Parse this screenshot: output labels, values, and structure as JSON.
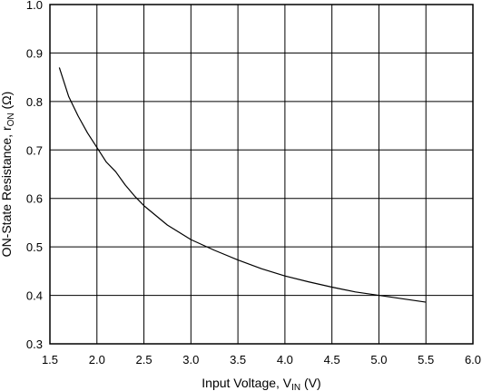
{
  "chart_data": {
    "type": "line",
    "xlabel": {
      "prefix": "Input Voltage, V",
      "sub": "IN",
      "suffix": " (V)"
    },
    "ylabel": {
      "prefix": "ON-State Resistance, r",
      "sub": "ON",
      "suffix": " (Ω)"
    },
    "xlim": [
      1.5,
      6.0
    ],
    "ylim": [
      0.3,
      1.0
    ],
    "x_ticks": [
      "1.5",
      "2.0",
      "2.5",
      "3.0",
      "3.5",
      "4.0",
      "4.5",
      "5.0",
      "5.5",
      "6.0"
    ],
    "y_ticks": [
      "0.3",
      "0.4",
      "0.5",
      "0.6",
      "0.7",
      "0.8",
      "0.9",
      "1.0"
    ],
    "grid": true,
    "series": [
      {
        "x": [
          1.6,
          1.7,
          1.8,
          1.9,
          2.0,
          2.1,
          2.2,
          2.3,
          2.4,
          2.5,
          2.75,
          3.0,
          3.25,
          3.5,
          3.75,
          4.0,
          4.25,
          4.5,
          4.75,
          5.0,
          5.25,
          5.5
        ],
        "y": [
          0.87,
          0.81,
          0.77,
          0.735,
          0.705,
          0.675,
          0.655,
          0.628,
          0.605,
          0.585,
          0.545,
          0.515,
          0.493,
          0.473,
          0.455,
          0.44,
          0.428,
          0.417,
          0.407,
          0.4,
          0.393,
          0.386
        ],
        "color": "#000000"
      }
    ]
  }
}
